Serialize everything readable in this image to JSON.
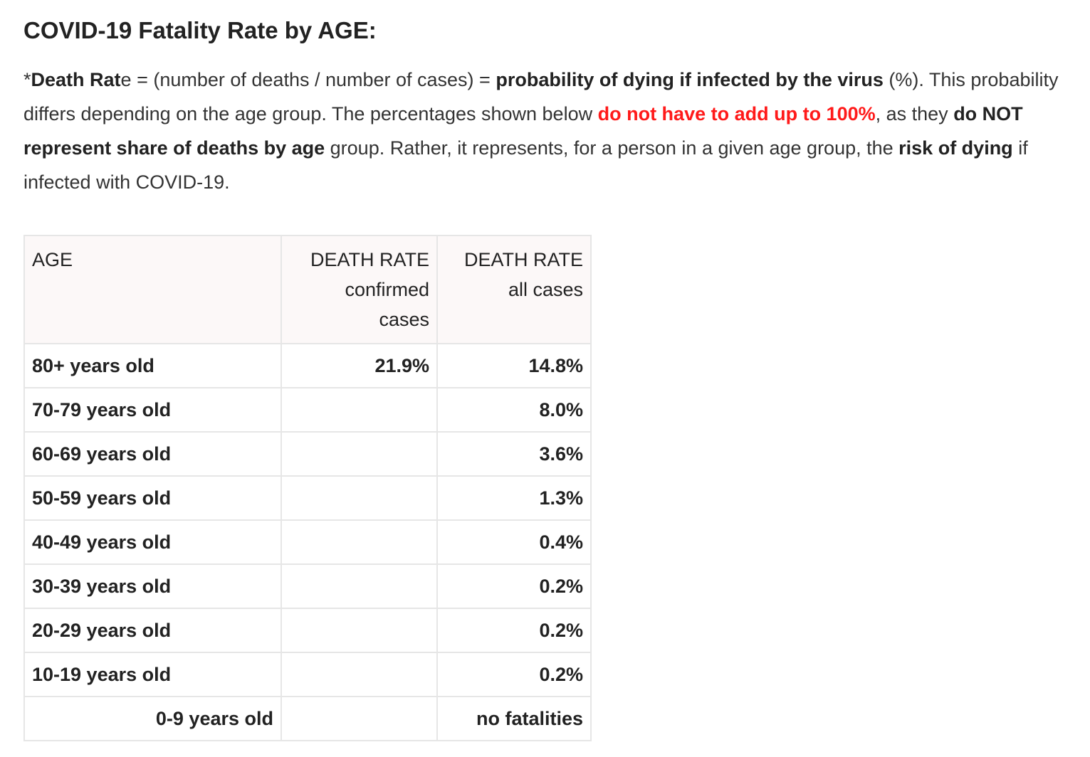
{
  "heading": "COVID-19 Fatality Rate by AGE:",
  "intro": {
    "p1": "*",
    "p2": "Death Rat",
    "p3": "e = (number of deaths / number of cases) = ",
    "p4": "probability of dying if infected by the virus",
    "p5": " (%). This probability differs depending on the age group. The percentages shown below ",
    "p6": "do not have to add up to 100%",
    "p7": ", as they ",
    "p8": "do NOT represent share of deaths by age",
    "p9": " group. Rather, it represents, for a person in a given age group, the ",
    "p10": "risk of dying",
    "p11": " if infected with COVID-19."
  },
  "table": {
    "headers": {
      "age": "AGE",
      "confirmed_line1": "DEATH RATE",
      "confirmed_line2": "confirmed",
      "confirmed_line3": "cases",
      "all_line1": "DEATH RATE",
      "all_line2": "all cases"
    },
    "rows": [
      {
        "age": "80+ years old",
        "confirmed": "21.9%",
        "all": "14.8%"
      },
      {
        "age": "70-79 years old",
        "confirmed": "",
        "all": "8.0%"
      },
      {
        "age": "60-69 years old",
        "confirmed": "",
        "all": "3.6%"
      },
      {
        "age": "50-59 years old",
        "confirmed": "",
        "all": "1.3%"
      },
      {
        "age": "40-49 years old",
        "confirmed": "",
        "all": "0.4%"
      },
      {
        "age": "30-39 years old",
        "confirmed": "",
        "all": "0.2%"
      },
      {
        "age": "20-29 years old",
        "confirmed": "",
        "all": "0.2%"
      },
      {
        "age": "10-19 years old",
        "confirmed": "",
        "all": "0.2%"
      },
      {
        "age": "0-9 years old",
        "confirmed": "",
        "all": "no fatalities"
      }
    ]
  },
  "colors": {
    "highlight_red": "#ff1a1a",
    "header_background": "#fcf8f8",
    "border": "#e6e6e6"
  }
}
